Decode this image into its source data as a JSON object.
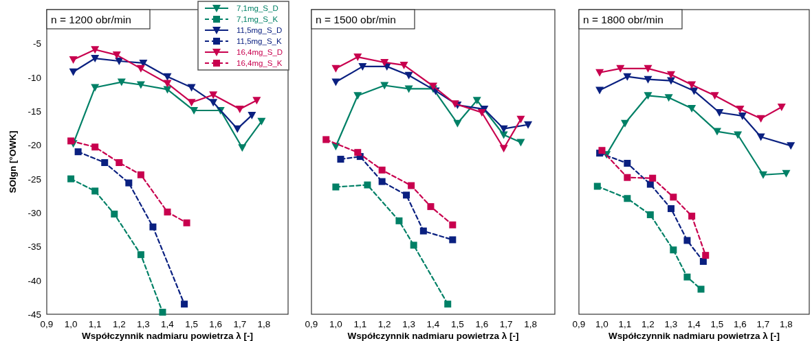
{
  "chart_data": [
    {
      "type": "line",
      "title": "n = 1200 obr/min",
      "xlabel": "Współczynnik nadmiaru powietrza λ [-]",
      "ylabel": "SOIgn [°OWK]",
      "xlim": [
        0.9,
        1.9
      ],
      "ylim": [
        -45,
        0
      ],
      "xticks": [
        {
          "value": 0.9,
          "label": "0,9"
        },
        {
          "value": 1.0,
          "label": "1,0"
        },
        {
          "value": 1.1,
          "label": "1,1"
        },
        {
          "value": 1.2,
          "label": "1,2"
        },
        {
          "value": 1.3,
          "label": "1,3"
        },
        {
          "value": 1.4,
          "label": "1,4"
        },
        {
          "value": 1.5,
          "label": "1,5"
        },
        {
          "value": 1.6,
          "label": "1,6"
        },
        {
          "value": 1.7,
          "label": "1,7"
        },
        {
          "value": 1.8,
          "label": "1,8"
        }
      ],
      "yticks": [
        -5,
        -10,
        -15,
        -20,
        -25,
        -30,
        -35,
        -40,
        -45
      ],
      "grid": false,
      "legend": "top right",
      "series": [
        {
          "name": "7,1mg_S_D",
          "color": "#008066",
          "marker": "triangle",
          "line_style": "solid",
          "x": [
            1.01,
            1.1,
            1.21,
            1.29,
            1.4,
            1.51,
            1.62,
            1.71,
            1.79
          ],
          "values": [
            -19.8,
            -11.5,
            -10.7,
            -11.1,
            -11.8,
            -14.9,
            -14.9,
            -20.4,
            -16.5
          ]
        },
        {
          "name": "7,1mg_S_K",
          "color": "#008066",
          "marker": "square",
          "line_style": "dashed",
          "x": [
            1.0,
            1.1,
            1.18,
            1.29,
            1.38
          ],
          "values": [
            -25.0,
            -26.8,
            -30.2,
            -36.2,
            -44.7
          ]
        },
        {
          "name": "11,5mg_S_D",
          "color": "#0a2080",
          "marker": "triangle",
          "line_style": "solid",
          "x": [
            1.01,
            1.1,
            1.2,
            1.3,
            1.4,
            1.5,
            1.59,
            1.69,
            1.75
          ],
          "values": [
            -9.2,
            -7.2,
            -7.6,
            -7.9,
            -9.9,
            -11.5,
            -13.7,
            -17.6,
            -15.6
          ]
        },
        {
          "name": "11,5mg_S_K",
          "color": "#0a2080",
          "marker": "square",
          "line_style": "dashed",
          "x": [
            1.03,
            1.14,
            1.24,
            1.34,
            1.47
          ],
          "values": [
            -21.0,
            -22.6,
            -25.6,
            -32.1,
            -43.5
          ]
        },
        {
          "name": "16,4mg_S_D",
          "color": "#c8004e",
          "marker": "triangle",
          "line_style": "solid",
          "x": [
            1.01,
            1.1,
            1.19,
            1.29,
            1.4,
            1.5,
            1.59,
            1.7,
            1.77
          ],
          "values": [
            -7.4,
            -5.9,
            -6.7,
            -8.7,
            -10.9,
            -13.7,
            -12.6,
            -14.7,
            -13.4
          ]
        },
        {
          "name": "16,4mg_S_K",
          "color": "#c8004e",
          "marker": "square",
          "line_style": "dashed",
          "x": [
            1.0,
            1.1,
            1.2,
            1.29,
            1.4,
            1.48
          ],
          "values": [
            -19.4,
            -20.3,
            -22.6,
            -24.4,
            -29.9,
            -31.5
          ]
        }
      ]
    },
    {
      "type": "line",
      "title": "n = 1500 obr/min",
      "xlabel": "Współczynnik nadmiaru powietrza λ [-]",
      "xlim": [
        0.9,
        1.9
      ],
      "ylim": [
        -45,
        0
      ],
      "xticks": [
        {
          "value": 0.9,
          "label": "0,9"
        },
        {
          "value": 1.0,
          "label": "1,0"
        },
        {
          "value": 1.1,
          "label": "1,1"
        },
        {
          "value": 1.2,
          "label": "1,2"
        },
        {
          "value": 1.3,
          "label": "1,3"
        },
        {
          "value": 1.4,
          "label": "1,4"
        },
        {
          "value": 1.5,
          "label": "1,5"
        },
        {
          "value": 1.6,
          "label": "1,6"
        },
        {
          "value": 1.7,
          "label": "1,7"
        },
        {
          "value": 1.8,
          "label": "1,8"
        }
      ],
      "grid": false,
      "tick_labels": "x",
      "series": [
        {
          "color": "#008066",
          "marker": "triangle",
          "line_style": "solid",
          "x": [
            1.0,
            1.09,
            1.2,
            1.3,
            1.4,
            1.5,
            1.58,
            1.69,
            1.76
          ],
          "values": [
            -20.2,
            -12.7,
            -11.2,
            -11.7,
            -11.7,
            -16.8,
            -13.4,
            -18.5,
            -19.6
          ]
        },
        {
          "color": "#008066",
          "marker": "square",
          "line_style": "dashed",
          "x": [
            1.0,
            1.13,
            1.26,
            1.32,
            1.46
          ],
          "values": [
            -26.2,
            -25.9,
            -31.2,
            -34.8,
            -43.5
          ]
        },
        {
          "color": "#0a2080",
          "marker": "triangle",
          "line_style": "solid",
          "x": [
            1.0,
            1.11,
            1.21,
            1.3,
            1.41,
            1.5,
            1.61,
            1.69,
            1.79
          ],
          "values": [
            -10.7,
            -8.4,
            -8.4,
            -9.7,
            -12.0,
            -14.1,
            -14.7,
            -17.6,
            -17.0
          ]
        },
        {
          "color": "#0a2080",
          "marker": "square",
          "line_style": "dashed",
          "x": [
            1.02,
            1.1,
            1.19,
            1.29,
            1.36,
            1.48
          ],
          "values": [
            -22.1,
            -21.7,
            -25.4,
            -27.4,
            -32.7,
            -34.0
          ]
        },
        {
          "color": "#c8004e",
          "marker": "triangle",
          "line_style": "solid",
          "x": [
            1.0,
            1.09,
            1.2,
            1.28,
            1.4,
            1.49,
            1.6,
            1.69,
            1.76
          ],
          "values": [
            -8.7,
            -7.0,
            -7.8,
            -8.2,
            -11.3,
            -13.9,
            -15.2,
            -20.5,
            -16.2
          ]
        },
        {
          "color": "#c8004e",
          "marker": "square",
          "line_style": "dashed",
          "x": [
            0.96,
            1.09,
            1.19,
            1.31,
            1.39,
            1.48
          ],
          "values": [
            -19.2,
            -21.1,
            -23.7,
            -26.0,
            -29.1,
            -31.8
          ]
        }
      ]
    },
    {
      "type": "line",
      "title": "n = 1800 obr/min",
      "xlabel": "Współczynnik nadmiaru powietrza λ [-]",
      "xlim": [
        0.9,
        1.9
      ],
      "ylim": [
        -45,
        0
      ],
      "xticks": [
        {
          "value": 0.9,
          "label": "0,9"
        },
        {
          "value": 1.0,
          "label": "1,0"
        },
        {
          "value": 1.1,
          "label": "1,1"
        },
        {
          "value": 1.2,
          "label": "1,2"
        },
        {
          "value": 1.3,
          "label": "1,3"
        },
        {
          "value": 1.4,
          "label": "1,4"
        },
        {
          "value": 1.5,
          "label": "1,5"
        },
        {
          "value": 1.6,
          "label": "1,6"
        },
        {
          "value": 1.7,
          "label": "1,7"
        },
        {
          "value": 1.8,
          "label": "1,8"
        }
      ],
      "grid": false,
      "tick_labels": "x",
      "series": [
        {
          "color": "#008066",
          "marker": "triangle",
          "line_style": "solid",
          "x": [
            1.02,
            1.1,
            1.2,
            1.29,
            1.39,
            1.5,
            1.59,
            1.7,
            1.8
          ],
          "values": [
            -21.4,
            -16.8,
            -12.7,
            -13.0,
            -14.6,
            -18.0,
            -18.5,
            -24.4,
            -24.2
          ]
        },
        {
          "color": "#008066",
          "marker": "square",
          "line_style": "dashed",
          "x": [
            0.98,
            1.11,
            1.21,
            1.31,
            1.37,
            1.43
          ],
          "values": [
            -26.1,
            -27.9,
            -30.3,
            -35.5,
            -39.5,
            -41.3
          ]
        },
        {
          "color": "#0a2080",
          "marker": "triangle",
          "line_style": "solid",
          "x": [
            0.99,
            1.11,
            1.2,
            1.3,
            1.4,
            1.51,
            1.61,
            1.69,
            1.82
          ],
          "values": [
            -11.9,
            -9.9,
            -10.3,
            -10.5,
            -12.0,
            -15.2,
            -15.7,
            -18.8,
            -20.1
          ]
        },
        {
          "color": "#0a2080",
          "marker": "square",
          "line_style": "dashed",
          "x": [
            0.99,
            1.11,
            1.21,
            1.3,
            1.37,
            1.44
          ],
          "values": [
            -21.2,
            -22.7,
            -25.8,
            -29.4,
            -34.1,
            -37.2
          ]
        },
        {
          "color": "#c8004e",
          "marker": "triangle",
          "line_style": "solid",
          "x": [
            0.99,
            1.08,
            1.2,
            1.3,
            1.39,
            1.49,
            1.6,
            1.69,
            1.78
          ],
          "values": [
            -9.3,
            -8.7,
            -8.7,
            -9.6,
            -11.1,
            -12.7,
            -14.7,
            -16.1,
            -14.4
          ]
        },
        {
          "color": "#c8004e",
          "marker": "square",
          "line_style": "dashed",
          "x": [
            1.0,
            1.11,
            1.22,
            1.31,
            1.39,
            1.45
          ],
          "values": [
            -20.8,
            -24.8,
            -24.9,
            -27.7,
            -30.5,
            -36.3
          ]
        }
      ]
    }
  ]
}
